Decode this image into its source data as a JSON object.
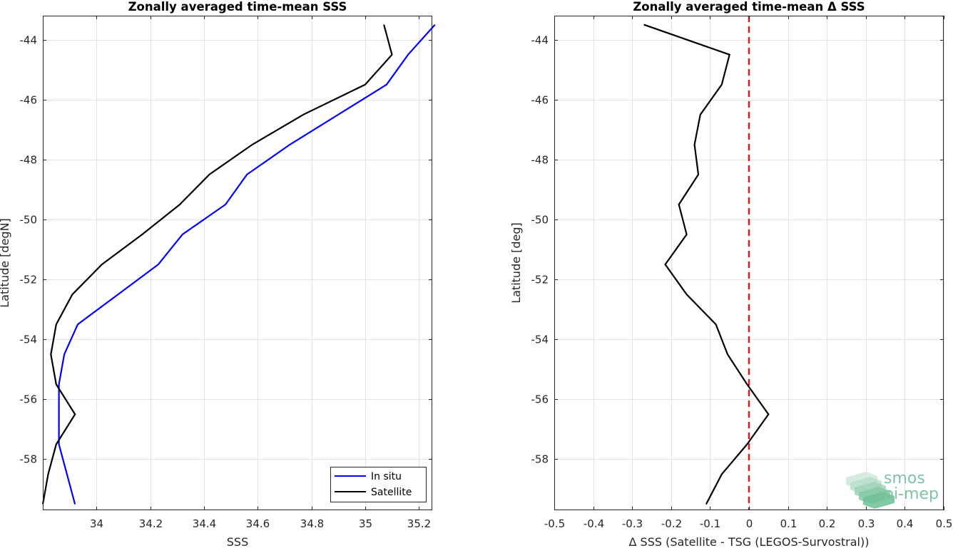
{
  "chart_data": [
    {
      "type": "line",
      "title": "Zonally averaged time-mean SSS",
      "xlabel": "SSS",
      "ylabel": "Latitude [degN]",
      "xlim": [
        33.8,
        35.25
      ],
      "ylim": [
        -59.7,
        -43.2
      ],
      "xticks": [
        34,
        34.2,
        34.4,
        34.6,
        34.8,
        35,
        35.2
      ],
      "xtick_labels": [
        "34",
        "34.2",
        "34.4",
        "34.6",
        "34.8",
        "35",
        "35.2"
      ],
      "yticks": [
        -44,
        -46,
        -48,
        -50,
        -52,
        -54,
        -56,
        -58
      ],
      "ytick_labels": [
        "-44",
        "-46",
        "-48",
        "-50",
        "-52",
        "-54",
        "-56",
        "-58"
      ],
      "grid": true,
      "legend_position": "bottom-right",
      "series": [
        {
          "name": "In situ",
          "color": "#0000ff",
          "x": [
            35.26,
            35.16,
            35.08,
            34.9,
            34.72,
            34.56,
            34.48,
            34.32,
            34.23,
            34.08,
            33.93,
            33.88,
            33.86,
            33.86,
            33.86,
            33.92
          ],
          "y": [
            -43.5,
            -44.5,
            -45.5,
            -46.5,
            -47.5,
            -48.5,
            -49.5,
            -50.5,
            -51.5,
            -52.5,
            -53.5,
            -54.5,
            -55.5,
            -56.5,
            -57.5,
            -59.5
          ]
        },
        {
          "name": "Satellite",
          "color": "#000000",
          "x": [
            35.07,
            35.1,
            35.0,
            34.77,
            34.58,
            34.42,
            34.31,
            34.17,
            34.02,
            33.91,
            33.85,
            33.83,
            33.85,
            33.92,
            33.85,
            33.82,
            33.8
          ],
          "y": [
            -43.5,
            -44.5,
            -45.5,
            -46.5,
            -47.5,
            -48.5,
            -49.5,
            -50.5,
            -51.5,
            -52.5,
            -53.5,
            -54.5,
            -55.5,
            -56.5,
            -57.5,
            -58.5,
            -59.5
          ]
        }
      ]
    },
    {
      "type": "line",
      "title": "Zonally averaged time-mean Δ SSS",
      "xlabel": "Δ SSS (Satellite - TSG (LEGOS-Survostral))",
      "ylabel": "Latitude [deg]",
      "xlim": [
        -0.5,
        0.5
      ],
      "ylim": [
        -59.7,
        -43.2
      ],
      "xticks": [
        -0.5,
        -0.4,
        -0.3,
        -0.2,
        -0.1,
        0,
        0.1,
        0.2,
        0.3,
        0.4,
        0.5
      ],
      "xtick_labels": [
        "-0.5",
        "-0.4",
        "-0.3",
        "-0.2",
        "-0.1",
        "0",
        "0.1",
        "0.2",
        "0.3",
        "0.4",
        "0.5"
      ],
      "yticks": [
        -44,
        -46,
        -48,
        -50,
        -52,
        -54,
        -56,
        -58
      ],
      "ytick_labels": [
        "-44",
        "-46",
        "-48",
        "-50",
        "-52",
        "-54",
        "-56",
        "-58"
      ],
      "grid": true,
      "reference_line": {
        "x": 0,
        "color": "#e8141b",
        "style": "dashed"
      },
      "series": [
        {
          "name": "",
          "color": "#000000",
          "x": [
            -0.27,
            -0.05,
            -0.07,
            -0.125,
            -0.14,
            -0.13,
            -0.18,
            -0.16,
            -0.215,
            -0.16,
            -0.085,
            -0.055,
            -0.005,
            0.05,
            -0.005,
            -0.07,
            -0.11
          ],
          "y": [
            -43.5,
            -44.5,
            -45.5,
            -46.5,
            -47.5,
            -48.5,
            -49.5,
            -50.5,
            -51.5,
            -52.5,
            -53.5,
            -54.5,
            -55.5,
            -56.5,
            -57.5,
            -58.5,
            -59.5
          ]
        }
      ]
    }
  ],
  "logo": {
    "line1": "smos",
    "line2": "pi-mep",
    "color": "#7fc4a6"
  }
}
